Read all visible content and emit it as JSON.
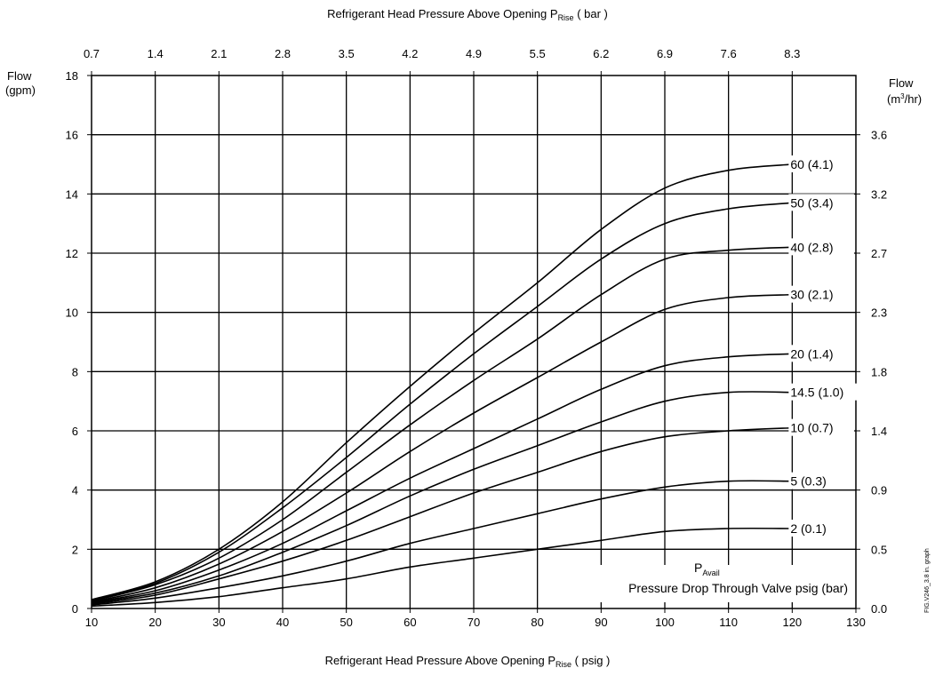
{
  "chart_data": {
    "type": "line",
    "title": "",
    "xlabel": {
      "main": "Refrigerant Head Pressure  Above Opening P",
      "sub": "Rise",
      "unit": " ( psig )"
    },
    "x2label": {
      "main": "Refrigerant Head Pressure  Above Opening P",
      "sub": "Rise",
      "unit": " ( bar )"
    },
    "ylabel_left": [
      "Flow",
      "(gpm)"
    ],
    "ylabel_right": {
      "line1": "Flow",
      "line2_pre": "(m",
      "line2_sup": "3",
      "line2_post": "/hr)"
    },
    "annotation": {
      "main": "P",
      "sub": "Avail",
      "line2": "Pressure Drop Through Valve psig (bar)"
    },
    "side_note": "FIG.V246_3.8 in. graph",
    "xlim": [
      10,
      130
    ],
    "ylim": [
      0,
      18
    ],
    "x_ticks": [
      10,
      20,
      30,
      40,
      50,
      60,
      70,
      80,
      90,
      100,
      110,
      120,
      130
    ],
    "y_ticks": [
      0,
      2,
      4,
      6,
      8,
      10,
      12,
      14,
      16,
      18
    ],
    "top_ticks": [
      {
        "x": 10,
        "label": "0.7"
      },
      {
        "x": 20,
        "label": "1.4"
      },
      {
        "x": 30,
        "label": "2.1"
      },
      {
        "x": 40,
        "label": "2.8"
      },
      {
        "x": 50,
        "label": "3.5"
      },
      {
        "x": 60,
        "label": "4.2"
      },
      {
        "x": 70,
        "label": "4.9"
      },
      {
        "x": 80,
        "label": "5.5"
      },
      {
        "x": 90,
        "label": "6.2"
      },
      {
        "x": 100,
        "label": "6.9"
      },
      {
        "x": 110,
        "label": "7.6"
      },
      {
        "x": 120,
        "label": "8.3"
      }
    ],
    "right_ticks": [
      {
        "y": 0,
        "label": "0.0"
      },
      {
        "y": 2,
        "label": "0.5"
      },
      {
        "y": 4,
        "label": "0.9"
      },
      {
        "y": 6,
        "label": "1.4"
      },
      {
        "y": 8,
        "label": "1.8"
      },
      {
        "y": 10,
        "label": "2.3"
      },
      {
        "y": 12,
        "label": "2.7"
      },
      {
        "y": 14,
        "label": "3.2"
      },
      {
        "y": 16,
        "label": "3.6"
      }
    ],
    "grid": true,
    "series": [
      {
        "name": "60 (4.1)",
        "label_y": 15.0,
        "points": [
          [
            10,
            0.3
          ],
          [
            20,
            0.9
          ],
          [
            30,
            2.0
          ],
          [
            40,
            3.6
          ],
          [
            50,
            5.6
          ],
          [
            60,
            7.5
          ],
          [
            70,
            9.3
          ],
          [
            80,
            11.0
          ],
          [
            90,
            12.8
          ],
          [
            100,
            14.2
          ],
          [
            110,
            14.8
          ],
          [
            120,
            15.0
          ]
        ]
      },
      {
        "name": "50 (3.4)",
        "label_y": 13.7,
        "points": [
          [
            10,
            0.28
          ],
          [
            20,
            0.85
          ],
          [
            30,
            1.9
          ],
          [
            40,
            3.4
          ],
          [
            50,
            5.1
          ],
          [
            60,
            6.9
          ],
          [
            70,
            8.6
          ],
          [
            80,
            10.2
          ],
          [
            90,
            11.8
          ],
          [
            100,
            13.0
          ],
          [
            110,
            13.5
          ],
          [
            120,
            13.7
          ]
        ]
      },
      {
        "name": "40 (2.8)",
        "label_y": 12.2,
        "points": [
          [
            10,
            0.25
          ],
          [
            20,
            0.8
          ],
          [
            30,
            1.7
          ],
          [
            40,
            3.0
          ],
          [
            50,
            4.6
          ],
          [
            60,
            6.2
          ],
          [
            70,
            7.7
          ],
          [
            80,
            9.1
          ],
          [
            90,
            10.6
          ],
          [
            100,
            11.8
          ],
          [
            110,
            12.1
          ],
          [
            120,
            12.2
          ]
        ]
      },
      {
        "name": "30 (2.1)",
        "label_y": 10.6,
        "points": [
          [
            10,
            0.22
          ],
          [
            20,
            0.7
          ],
          [
            30,
            1.5
          ],
          [
            40,
            2.6
          ],
          [
            50,
            3.9
          ],
          [
            60,
            5.3
          ],
          [
            70,
            6.6
          ],
          [
            80,
            7.8
          ],
          [
            90,
            9.0
          ],
          [
            100,
            10.1
          ],
          [
            110,
            10.5
          ],
          [
            120,
            10.6
          ]
        ]
      },
      {
        "name": "20 (1.4)",
        "label_y": 8.6,
        "points": [
          [
            10,
            0.2
          ],
          [
            20,
            0.6
          ],
          [
            30,
            1.3
          ],
          [
            40,
            2.2
          ],
          [
            50,
            3.3
          ],
          [
            60,
            4.4
          ],
          [
            70,
            5.4
          ],
          [
            80,
            6.4
          ],
          [
            90,
            7.4
          ],
          [
            100,
            8.2
          ],
          [
            110,
            8.5
          ],
          [
            120,
            8.6
          ]
        ]
      },
      {
        "name": "14.5 (1.0)",
        "label_y": 7.3,
        "points": [
          [
            10,
            0.18
          ],
          [
            20,
            0.52
          ],
          [
            30,
            1.1
          ],
          [
            40,
            1.9
          ],
          [
            50,
            2.8
          ],
          [
            60,
            3.8
          ],
          [
            70,
            4.7
          ],
          [
            80,
            5.5
          ],
          [
            90,
            6.3
          ],
          [
            100,
            7.0
          ],
          [
            110,
            7.3
          ],
          [
            120,
            7.3
          ]
        ]
      },
      {
        "name": "10 (0.7)",
        "label_y": 6.1,
        "points": [
          [
            10,
            0.15
          ],
          [
            20,
            0.45
          ],
          [
            30,
            1.0
          ],
          [
            40,
            1.6
          ],
          [
            50,
            2.3
          ],
          [
            60,
            3.1
          ],
          [
            70,
            3.9
          ],
          [
            80,
            4.6
          ],
          [
            90,
            5.3
          ],
          [
            100,
            5.8
          ],
          [
            110,
            6.0
          ],
          [
            120,
            6.1
          ]
        ]
      },
      {
        "name": "5 (0.3)",
        "label_y": 4.3,
        "points": [
          [
            10,
            0.12
          ],
          [
            20,
            0.35
          ],
          [
            30,
            0.7
          ],
          [
            40,
            1.1
          ],
          [
            50,
            1.6
          ],
          [
            60,
            2.2
          ],
          [
            70,
            2.7
          ],
          [
            80,
            3.2
          ],
          [
            90,
            3.7
          ],
          [
            100,
            4.1
          ],
          [
            110,
            4.3
          ],
          [
            120,
            4.3
          ]
        ]
      },
      {
        "name": "2 (0.1)",
        "label_y": 2.7,
        "points": [
          [
            10,
            0.08
          ],
          [
            20,
            0.2
          ],
          [
            30,
            0.4
          ],
          [
            40,
            0.7
          ],
          [
            50,
            1.0
          ],
          [
            60,
            1.4
          ],
          [
            70,
            1.7
          ],
          [
            80,
            2.0
          ],
          [
            90,
            2.3
          ],
          [
            100,
            2.6
          ],
          [
            110,
            2.7
          ],
          [
            120,
            2.7
          ]
        ]
      }
    ]
  }
}
